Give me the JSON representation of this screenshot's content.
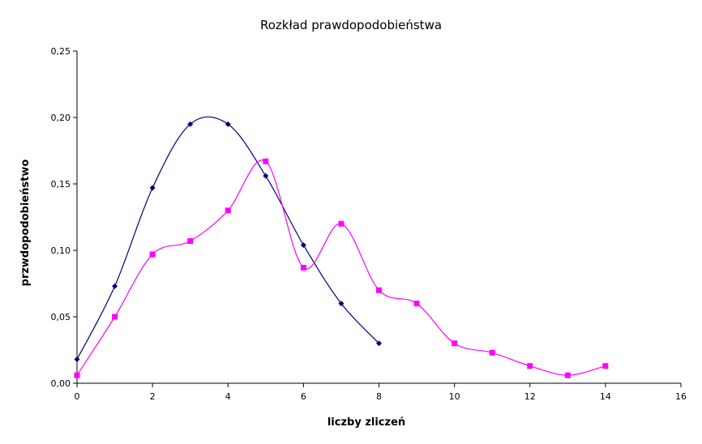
{
  "chart_data": {
    "type": "line",
    "title": "Rozkład prawdopodobieństwa",
    "xlabel": "liczby zliczeń",
    "ylabel": "przwdopodobieństwo",
    "xlim": [
      0,
      16
    ],
    "ylim": [
      0,
      0.25
    ],
    "x_ticks": [
      "0",
      "2",
      "4",
      "6",
      "8",
      "10",
      "12",
      "14",
      "16"
    ],
    "y_ticks": [
      "0,00",
      "0,05",
      "0,10",
      "0,15",
      "0,20",
      "0,25"
    ],
    "grid": false,
    "legend": "none",
    "smoothed": true,
    "series": [
      {
        "color": "#000080",
        "marker": "diamond",
        "x": [
          0,
          1,
          2,
          3,
          4,
          5,
          6,
          7,
          8
        ],
        "y": [
          0.018,
          0.073,
          0.147,
          0.195,
          0.195,
          0.156,
          0.104,
          0.06,
          0.03
        ]
      },
      {
        "color": "#ff00ff",
        "marker": "square",
        "x": [
          0,
          1,
          2,
          3,
          4,
          5,
          6,
          7,
          8,
          9,
          10,
          11,
          12,
          13,
          14
        ],
        "y": [
          0.006,
          0.05,
          0.097,
          0.107,
          0.13,
          0.167,
          0.087,
          0.12,
          0.07,
          0.06,
          0.03,
          0.023,
          0.013,
          0.006,
          0.013
        ]
      }
    ]
  }
}
